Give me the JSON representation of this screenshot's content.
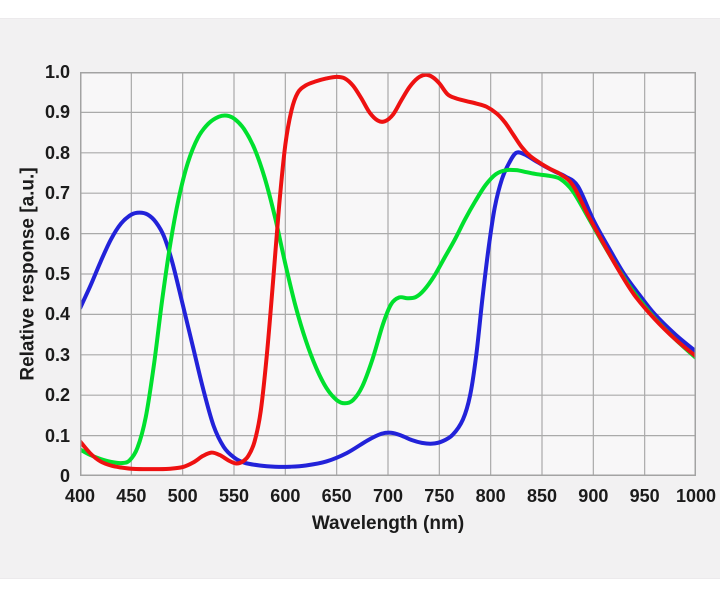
{
  "colors": {
    "page_bg": "#ffffff",
    "panel_bg": "#f2f1f2",
    "plot_bg": "#f8f7f8",
    "grid": "#aaaaaa",
    "spine": "#a3a3a3",
    "text": "#1b1b1b",
    "red_line": "#ee1111",
    "green_line": "#00e02e",
    "blue_line": "#2222d9"
  },
  "chart_data": {
    "type": "line",
    "title": "",
    "xlabel": "Wavelength (nm)",
    "ylabel": "Relative response [a.u.]",
    "xlim": [
      400,
      1000
    ],
    "ylim": [
      0,
      1.0
    ],
    "grid": true,
    "legend": "none",
    "x_ticks": [
      400,
      450,
      500,
      550,
      600,
      650,
      700,
      750,
      800,
      850,
      900,
      950,
      1000
    ],
    "x_tick_labels": [
      "400",
      "450",
      "500",
      "550",
      "600",
      "650",
      "700",
      "750",
      "800",
      "850",
      "900",
      "950",
      "1000"
    ],
    "y_ticks": [
      0,
      0.1,
      0.2,
      0.3,
      0.4,
      0.5,
      0.6,
      0.7,
      0.8,
      0.9,
      1.0
    ],
    "y_tick_labels": [
      "0",
      "0.1",
      "0.2",
      "0.3",
      "0.4",
      "0.5",
      "0.6",
      "0.7",
      "0.8",
      "0.9",
      "1.0"
    ],
    "line_width": 4,
    "series": [
      {
        "name": "blue-channel",
        "color": "#2222d9",
        "points": [
          [
            400,
            0.415
          ],
          [
            410,
            0.47
          ],
          [
            420,
            0.53
          ],
          [
            430,
            0.585
          ],
          [
            440,
            0.625
          ],
          [
            450,
            0.647
          ],
          [
            458,
            0.652
          ],
          [
            466,
            0.647
          ],
          [
            474,
            0.628
          ],
          [
            482,
            0.592
          ],
          [
            490,
            0.528
          ],
          [
            500,
            0.425
          ],
          [
            510,
            0.32
          ],
          [
            520,
            0.215
          ],
          [
            530,
            0.125
          ],
          [
            540,
            0.072
          ],
          [
            550,
            0.046
          ],
          [
            560,
            0.033
          ],
          [
            575,
            0.026
          ],
          [
            590,
            0.023
          ],
          [
            605,
            0.023
          ],
          [
            620,
            0.026
          ],
          [
            640,
            0.036
          ],
          [
            660,
            0.057
          ],
          [
            680,
            0.088
          ],
          [
            693,
            0.104
          ],
          [
            703,
            0.107
          ],
          [
            713,
            0.1
          ],
          [
            723,
            0.089
          ],
          [
            733,
            0.082
          ],
          [
            743,
            0.08
          ],
          [
            753,
            0.086
          ],
          [
            763,
            0.102
          ],
          [
            773,
            0.14
          ],
          [
            780,
            0.2
          ],
          [
            786,
            0.3
          ],
          [
            792,
            0.44
          ],
          [
            798,
            0.565
          ],
          [
            804,
            0.665
          ],
          [
            811,
            0.735
          ],
          [
            818,
            0.775
          ],
          [
            825,
            0.8
          ],
          [
            833,
            0.796
          ],
          [
            843,
            0.781
          ],
          [
            853,
            0.766
          ],
          [
            863,
            0.753
          ],
          [
            873,
            0.741
          ],
          [
            885,
            0.717
          ],
          [
            900,
            0.634
          ],
          [
            915,
            0.565
          ],
          [
            930,
            0.5
          ],
          [
            945,
            0.448
          ],
          [
            960,
            0.4
          ],
          [
            980,
            0.35
          ],
          [
            1000,
            0.308
          ]
        ]
      },
      {
        "name": "green-channel",
        "color": "#00e02e",
        "points": [
          [
            400,
            0.066
          ],
          [
            410,
            0.052
          ],
          [
            420,
            0.042
          ],
          [
            430,
            0.035
          ],
          [
            440,
            0.032
          ],
          [
            448,
            0.038
          ],
          [
            456,
            0.07
          ],
          [
            464,
            0.145
          ],
          [
            472,
            0.275
          ],
          [
            480,
            0.435
          ],
          [
            488,
            0.575
          ],
          [
            496,
            0.685
          ],
          [
            505,
            0.775
          ],
          [
            515,
            0.838
          ],
          [
            525,
            0.872
          ],
          [
            535,
            0.889
          ],
          [
            543,
            0.892
          ],
          [
            551,
            0.883
          ],
          [
            560,
            0.858
          ],
          [
            570,
            0.81
          ],
          [
            580,
            0.737
          ],
          [
            590,
            0.64
          ],
          [
            600,
            0.525
          ],
          [
            610,
            0.42
          ],
          [
            620,
            0.335
          ],
          [
            630,
            0.268
          ],
          [
            640,
            0.218
          ],
          [
            650,
            0.188
          ],
          [
            658,
            0.18
          ],
          [
            666,
            0.188
          ],
          [
            675,
            0.222
          ],
          [
            685,
            0.29
          ],
          [
            695,
            0.375
          ],
          [
            703,
            0.425
          ],
          [
            711,
            0.442
          ],
          [
            719,
            0.44
          ],
          [
            727,
            0.443
          ],
          [
            735,
            0.46
          ],
          [
            745,
            0.495
          ],
          [
            755,
            0.54
          ],
          [
            765,
            0.585
          ],
          [
            775,
            0.635
          ],
          [
            785,
            0.68
          ],
          [
            795,
            0.72
          ],
          [
            805,
            0.747
          ],
          [
            815,
            0.757
          ],
          [
            825,
            0.757
          ],
          [
            835,
            0.752
          ],
          [
            845,
            0.747
          ],
          [
            857,
            0.743
          ],
          [
            868,
            0.735
          ],
          [
            880,
            0.705
          ],
          [
            895,
            0.64
          ],
          [
            910,
            0.573
          ],
          [
            925,
            0.51
          ],
          [
            940,
            0.453
          ],
          [
            960,
            0.39
          ],
          [
            980,
            0.338
          ],
          [
            1000,
            0.292
          ]
        ]
      },
      {
        "name": "red-channel",
        "color": "#ee1111",
        "points": [
          [
            400,
            0.086
          ],
          [
            410,
            0.056
          ],
          [
            420,
            0.036
          ],
          [
            430,
            0.026
          ],
          [
            440,
            0.021
          ],
          [
            450,
            0.018
          ],
          [
            462,
            0.017
          ],
          [
            475,
            0.017
          ],
          [
            488,
            0.018
          ],
          [
            500,
            0.022
          ],
          [
            510,
            0.033
          ],
          [
            520,
            0.05
          ],
          [
            528,
            0.058
          ],
          [
            536,
            0.052
          ],
          [
            545,
            0.038
          ],
          [
            552,
            0.031
          ],
          [
            558,
            0.035
          ],
          [
            564,
            0.05
          ],
          [
            570,
            0.085
          ],
          [
            576,
            0.16
          ],
          [
            582,
            0.3
          ],
          [
            588,
            0.48
          ],
          [
            594,
            0.67
          ],
          [
            600,
            0.82
          ],
          [
            606,
            0.905
          ],
          [
            612,
            0.948
          ],
          [
            620,
            0.967
          ],
          [
            630,
            0.977
          ],
          [
            640,
            0.984
          ],
          [
            650,
            0.988
          ],
          [
            658,
            0.984
          ],
          [
            666,
            0.966
          ],
          [
            674,
            0.935
          ],
          [
            682,
            0.9
          ],
          [
            690,
            0.88
          ],
          [
            697,
            0.878
          ],
          [
            705,
            0.895
          ],
          [
            713,
            0.93
          ],
          [
            721,
            0.963
          ],
          [
            729,
            0.985
          ],
          [
            736,
            0.993
          ],
          [
            743,
            0.988
          ],
          [
            750,
            0.972
          ],
          [
            758,
            0.945
          ],
          [
            766,
            0.935
          ],
          [
            776,
            0.928
          ],
          [
            786,
            0.922
          ],
          [
            796,
            0.914
          ],
          [
            806,
            0.897
          ],
          [
            814,
            0.875
          ],
          [
            822,
            0.845
          ],
          [
            830,
            0.815
          ],
          [
            838,
            0.793
          ],
          [
            848,
            0.775
          ],
          [
            858,
            0.76
          ],
          [
            868,
            0.747
          ],
          [
            880,
            0.72
          ],
          [
            895,
            0.645
          ],
          [
            910,
            0.575
          ],
          [
            925,
            0.508
          ],
          [
            940,
            0.448
          ],
          [
            960,
            0.388
          ],
          [
            980,
            0.338
          ],
          [
            1000,
            0.296
          ]
        ]
      }
    ]
  }
}
